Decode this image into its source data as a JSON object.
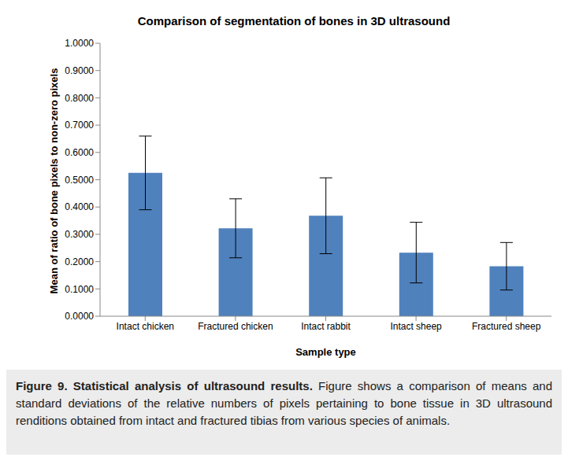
{
  "chart_data": {
    "type": "bar",
    "title": "Comparison of segmentation of bones in 3D ultrasound",
    "x_label": "Sample type",
    "y_label": "Mean of ratio of bone pixels to non-zero pixels",
    "categories": [
      "Intact chicken",
      "Fractured chicken",
      "Intact rabbit",
      "Intact sheep",
      "Fractured sheep"
    ],
    "values": [
      0.525,
      0.322,
      0.368,
      0.233,
      0.183
    ],
    "error_bars": [
      0.135,
      0.108,
      0.139,
      0.111,
      0.087
    ],
    "color": "#4f81bd",
    "ylim": [
      0,
      1
    ],
    "yticks": [
      {
        "value": 0,
        "label": "0.0000"
      },
      {
        "value": 0.1,
        "label": "0.1000"
      },
      {
        "value": 0.2,
        "label": "0.2000"
      },
      {
        "value": 0.3,
        "label": "0.3000"
      },
      {
        "value": 0.4,
        "label": "0.4000"
      },
      {
        "value": 0.5,
        "label": "0.5000"
      },
      {
        "value": 0.6,
        "label": "0.6000"
      },
      {
        "value": 0.7,
        "label": "0.7000"
      },
      {
        "value": 0.8,
        "label": "0.8000"
      },
      {
        "value": 0.9,
        "label": "0.9000"
      },
      {
        "value": 1,
        "label": "1.0000"
      }
    ],
    "grid": false
  },
  "caption": {
    "title": "Figure 9. Statistical analysis of ultrasound results.",
    "text": "Figure shows a comparison of means and standard deviations of the relative numbers of pixels pertaining to bone tissue in 3D ultrasound renditions obtained from intact and fractured tibias from various species of animals."
  }
}
